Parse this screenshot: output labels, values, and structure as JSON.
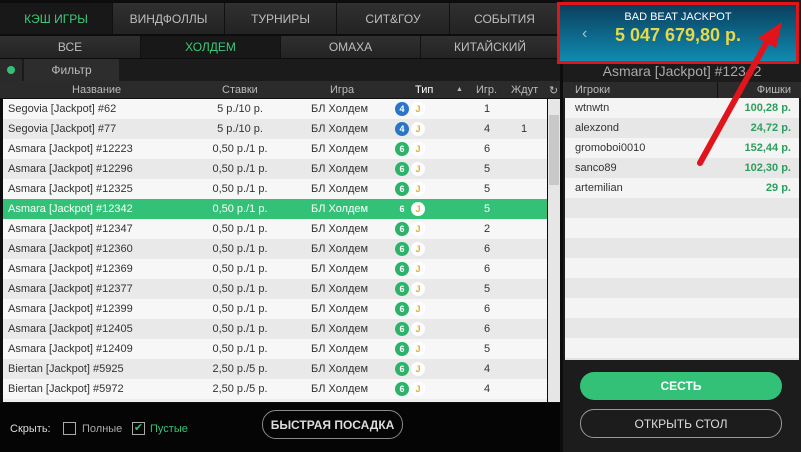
{
  "top_tabs": [
    "КЭШ ИГРЫ",
    "ВИНДФОЛЛЫ",
    "ТУРНИРЫ",
    "СИТ&ГОУ",
    "СОБЫТИЯ"
  ],
  "sub_tabs": [
    "ВСЕ",
    "ХОЛДЕМ",
    "ОМАХА",
    "КИТАЙСКИЙ"
  ],
  "filter_label": "Фильтр",
  "columns": {
    "name": "Название",
    "stakes": "Ставки",
    "game": "Игра",
    "type": "Тип",
    "players": "Игр.",
    "waiting": "Ждут"
  },
  "rows": [
    {
      "name": "Segovia [Jackpot] #62",
      "stakes": "5 р./10 р.",
      "game": "БЛ Холдем",
      "seats": "4",
      "players": "1",
      "waiting": ""
    },
    {
      "name": "Segovia [Jackpot] #77",
      "stakes": "5 р./10 р.",
      "game": "БЛ Холдем",
      "seats": "4",
      "players": "4",
      "waiting": "1"
    },
    {
      "name": "Asmara [Jackpot] #12223",
      "stakes": "0,50 р./1 р.",
      "game": "БЛ Холдем",
      "seats": "6",
      "players": "6",
      "waiting": ""
    },
    {
      "name": "Asmara [Jackpot] #12296",
      "stakes": "0,50 р./1 р.",
      "game": "БЛ Холдем",
      "seats": "6",
      "players": "5",
      "waiting": ""
    },
    {
      "name": "Asmara [Jackpot] #12325",
      "stakes": "0,50 р./1 р.",
      "game": "БЛ Холдем",
      "seats": "6",
      "players": "5",
      "waiting": ""
    },
    {
      "name": "Asmara [Jackpot] #12342",
      "stakes": "0,50 р./1 р.",
      "game": "БЛ Холдем",
      "seats": "6",
      "players": "5",
      "waiting": "",
      "selected": true
    },
    {
      "name": "Asmara [Jackpot] #12347",
      "stakes": "0,50 р./1 р.",
      "game": "БЛ Холдем",
      "seats": "6",
      "players": "2",
      "waiting": ""
    },
    {
      "name": "Asmara [Jackpot] #12360",
      "stakes": "0,50 р./1 р.",
      "game": "БЛ Холдем",
      "seats": "6",
      "players": "6",
      "waiting": ""
    },
    {
      "name": "Asmara [Jackpot] #12369",
      "stakes": "0,50 р./1 р.",
      "game": "БЛ Холдем",
      "seats": "6",
      "players": "6",
      "waiting": ""
    },
    {
      "name": "Asmara [Jackpot] #12377",
      "stakes": "0,50 р./1 р.",
      "game": "БЛ Холдем",
      "seats": "6",
      "players": "5",
      "waiting": ""
    },
    {
      "name": "Asmara [Jackpot] #12399",
      "stakes": "0,50 р./1 р.",
      "game": "БЛ Холдем",
      "seats": "6",
      "players": "6",
      "waiting": ""
    },
    {
      "name": "Asmara [Jackpot] #12405",
      "stakes": "0,50 р./1 р.",
      "game": "БЛ Холдем",
      "seats": "6",
      "players": "6",
      "waiting": ""
    },
    {
      "name": "Asmara [Jackpot] #12409",
      "stakes": "0,50 р./1 р.",
      "game": "БЛ Холдем",
      "seats": "6",
      "players": "5",
      "waiting": ""
    },
    {
      "name": "Biertan [Jackpot] #5925",
      "stakes": "2,50 р./5 р.",
      "game": "БЛ Холдем",
      "seats": "6",
      "players": "4",
      "waiting": ""
    },
    {
      "name": "Biertan [Jackpot] #5972",
      "stakes": "2,50 р./5 р.",
      "game": "БЛ Холдем",
      "seats": "6",
      "players": "4",
      "waiting": ""
    }
  ],
  "jackpot_letter": "J",
  "bottom": {
    "hide_label": "Скрыть:",
    "full_label": "Полные",
    "full_checked": false,
    "empty_label": "Пустые",
    "empty_checked": true,
    "quick_seat": "БЫСТРАЯ ПОСАДКА"
  },
  "jackpot": {
    "title": "BAD BEAT JACKPOT",
    "amount": "5 047 679,80 р."
  },
  "table_panel": {
    "title": "Asmara [Jackpot] #12342",
    "col_players": "Игроки",
    "col_chips": "Фишки",
    "players": [
      {
        "name": "wtnwtn",
        "chips": "100,28 р."
      },
      {
        "name": "alexzond",
        "chips": "24,72 р."
      },
      {
        "name": "gromoboi0010",
        "chips": "152,44 р."
      },
      {
        "name": "sanco89",
        "chips": "102,30 р."
      },
      {
        "name": "artemilian",
        "chips": "29 р."
      }
    ],
    "sit": "СЕСТЬ",
    "open_table": "ОТКРЫТЬ СТОЛ"
  },
  "colors": {
    "accent": "#33c178",
    "seat4": "#2a74c9",
    "seat6": "#2bb36a",
    "highlight": "#e0141a",
    "jackpot_amount": "#e6d84a"
  }
}
